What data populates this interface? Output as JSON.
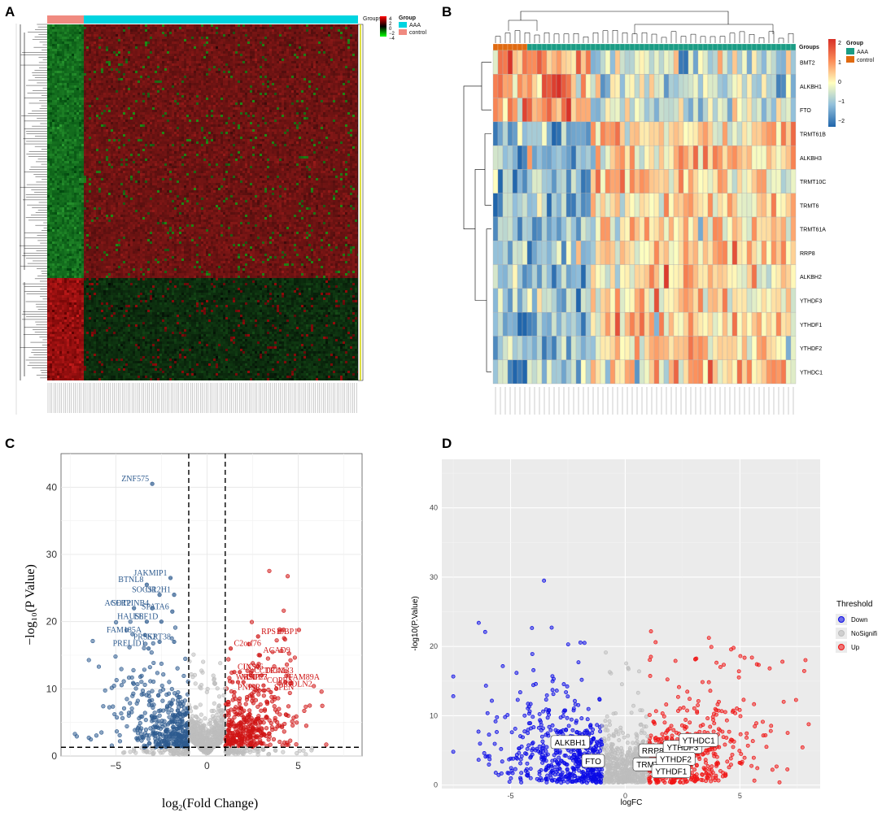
{
  "colors": {
    "aaa_cyan": "#00d4e0",
    "control_salmon": "#f08a80",
    "aaa_teal": "#1a9c84",
    "control_orange": "#e06a10",
    "down_blue_c": "#2e5b8f",
    "up_red_c": "#cf1414",
    "down_blue_d": "#0a0ae6",
    "up_red_d": "#f01414",
    "nosig_gray": "#bdbdbd"
  },
  "chart_data": [
    {
      "panel": "A",
      "type": "heatmap",
      "legend_title": "Group",
      "groups_label": "Groups",
      "groups": [
        "AAA",
        "control"
      ],
      "color_scale_ticks": [
        "4",
        "2",
        "0",
        "−2",
        "−4"
      ],
      "color_scale": {
        "low": "#00ff00",
        "mid": "#000000",
        "high": "#ff0000"
      },
      "blocks": [
        {
          "gene_cluster": "upper",
          "control": "green (low)",
          "AAA": "dark red (mid-high)"
        },
        {
          "gene_cluster": "lower",
          "control": "red (high)",
          "AAA": "dark green (mid-low)"
        }
      ]
    },
    {
      "panel": "B",
      "type": "heatmap",
      "legend_title": "Group",
      "groups_label": "Groups",
      "groups": [
        "AAA",
        "control"
      ],
      "color_scale_ticks": [
        "2",
        "1",
        "0",
        "−1",
        "−2"
      ],
      "genes": [
        "BMT2",
        "ALKBH1",
        "FTO",
        "TRMT61B",
        "ALKBH3",
        "TRMT10C",
        "TRMT6",
        "TRMT61A",
        "RRP8",
        "ALKBH2",
        "YTHDF3",
        "YTHDF1",
        "YTHDF2",
        "YTHDC1"
      ],
      "group_pattern": {
        "BMT2": {
          "control": "high",
          "AAA": "low"
        },
        "ALKBH1": {
          "control": "high",
          "AAA": "low"
        },
        "FTO": {
          "control": "high",
          "AAA": "low"
        },
        "TRMT61B": {
          "control": "low",
          "AAA": "high"
        },
        "ALKBH3": {
          "control": "low",
          "AAA": "high"
        },
        "TRMT10C": {
          "control": "low",
          "AAA": "high"
        },
        "TRMT6": {
          "control": "low",
          "AAA": "high"
        },
        "TRMT61A": {
          "control": "low",
          "AAA": "high"
        },
        "RRP8": {
          "control": "low",
          "AAA": "high"
        },
        "ALKBH2": {
          "control": "low",
          "AAA": "high"
        },
        "YTHDF3": {
          "control": "low",
          "AAA": "high"
        },
        "YTHDF1": {
          "control": "low",
          "AAA": "high"
        },
        "YTHDF2": {
          "control": "low",
          "AAA": "high"
        },
        "YTHDC1": {
          "control": "low",
          "AAA": "high"
        }
      }
    },
    {
      "panel": "C",
      "type": "scatter",
      "xlabel_base": "log",
      "xlabel_sub": "2",
      "xlabel_rest": "(Fold Change)",
      "ylabel": "−log₁₀(P Value)",
      "xlim": [
        -8,
        8.5
      ],
      "ylim": [
        0,
        45
      ],
      "xticks": [
        -5,
        0,
        5
      ],
      "yticks": [
        0,
        10,
        20,
        30,
        40
      ],
      "xtick_labels": [
        "−5",
        "0",
        "5"
      ],
      "ytick_labels": [
        "0",
        "10",
        "20",
        "30",
        "40"
      ],
      "fold_change_cutoffs": [
        -1,
        1
      ],
      "p_cutoff": 1.3,
      "labeled_points": [
        {
          "gene": "ZNF575",
          "x": -3.0,
          "y": 40.5,
          "dir": "down"
        },
        {
          "gene": "JAKMIP1",
          "x": -2.0,
          "y": 26.5,
          "dir": "down"
        },
        {
          "gene": "BTNL8",
          "x": -3.3,
          "y": 25.5,
          "dir": "down"
        },
        {
          "gene": "SOCS1",
          "x": -2.6,
          "y": 24.0,
          "dir": "down"
        },
        {
          "gene": "OR2H1",
          "x": -1.8,
          "y": 24.0,
          "dir": "down"
        },
        {
          "gene": "ACOT2",
          "x": -4.0,
          "y": 22.0,
          "dir": "down"
        },
        {
          "gene": "SERPINB4",
          "x": -3.0,
          "y": 22.0,
          "dir": "down"
        },
        {
          "gene": "SPATA6",
          "x": -1.9,
          "y": 21.5,
          "dir": "down"
        },
        {
          "gene": "HAUS8",
          "x": -3.3,
          "y": 20.0,
          "dir": "down"
        },
        {
          "gene": "EEF1D",
          "x": -2.5,
          "y": 20.0,
          "dir": "down"
        },
        {
          "gene": "FAM185A",
          "x": -3.4,
          "y": 18.0,
          "dir": "down"
        },
        {
          "gene": "PRSS2",
          "x": -2.6,
          "y": 17.0,
          "dir": "down"
        },
        {
          "gene": "KRT38",
          "x": -1.8,
          "y": 17.0,
          "dir": "down"
        },
        {
          "gene": "PRELID1",
          "x": -3.2,
          "y": 16.0,
          "dir": "down"
        },
        {
          "gene": "RPS19BP1",
          "x": 2.8,
          "y": 17.8,
          "dir": "up"
        },
        {
          "gene": "C2orf76",
          "x": 1.3,
          "y": 16.0,
          "dir": "up"
        },
        {
          "gene": "ACAD9",
          "x": 2.9,
          "y": 15.0,
          "dir": "up"
        },
        {
          "gene": "CLCN6",
          "x": 1.5,
          "y": 12.5,
          "dir": "up"
        },
        {
          "gene": "INS1",
          "x": 1.8,
          "y": 12.5,
          "dir": "up"
        },
        {
          "gene": "CCDC41",
          "x": 2.4,
          "y": 12.0,
          "dir": "up"
        },
        {
          "gene": "TRIM33",
          "x": 3.0,
          "y": 12.0,
          "dir": "up"
        },
        {
          "gene": "FAM89A",
          "x": 4.3,
          "y": 11.0,
          "dir": "up"
        },
        {
          "gene": "WRAP73",
          "x": 1.4,
          "y": 11.0,
          "dir": "up"
        },
        {
          "gene": "MSI",
          "x": 1.7,
          "y": 11.0,
          "dir": "up"
        },
        {
          "gene": "CUL7",
          "x": 2.0,
          "y": 11.0,
          "dir": "up"
        },
        {
          "gene": "COPRS",
          "x": 3.1,
          "y": 10.5,
          "dir": "up"
        },
        {
          "gene": "YGOLN2",
          "x": 3.8,
          "y": 10.0,
          "dir": "up"
        },
        {
          "gene": "PNISR",
          "x": 1.5,
          "y": 9.5,
          "dir": "up"
        },
        {
          "gene": "SPEN",
          "x": 3.5,
          "y": 9.5,
          "dir": "up"
        }
      ]
    },
    {
      "panel": "D",
      "type": "scatter",
      "xlabel": "logFC",
      "ylabel": "-log10(P.Value)",
      "xlim": [
        -8,
        8.5
      ],
      "ylim": [
        -0.5,
        47
      ],
      "xticks": [
        -5,
        0,
        5
      ],
      "yticks": [
        0,
        10,
        20,
        30,
        40
      ],
      "xtick_labels": [
        "-5",
        "0",
        "5"
      ],
      "ytick_labels": [
        "0",
        "10",
        "20",
        "30",
        "40"
      ],
      "legend_title": "Threshold",
      "legend_entries": [
        "Down",
        "NoSignifi",
        "Up"
      ],
      "labeled_points": [
        {
          "gene": "ALKBH1",
          "x": -2.4,
          "y": 6.2
        },
        {
          "gene": "FTO",
          "x": -1.4,
          "y": 3.5
        },
        {
          "gene": "RRP8",
          "x": 1.2,
          "y": 5.0
        },
        {
          "gene": "TRMT61A",
          "x": 1.3,
          "y": 3.0
        },
        {
          "gene": "YTHDF3",
          "x": 2.5,
          "y": 5.5
        },
        {
          "gene": "YTHDC1",
          "x": 3.2,
          "y": 6.5
        },
        {
          "gene": "YTHDF2",
          "x": 2.2,
          "y": 3.8
        },
        {
          "gene": "YTHDF1",
          "x": 2.0,
          "y": 2.0
        }
      ]
    }
  ],
  "panel_letters": {
    "a": "A",
    "b": "B",
    "c": "C",
    "d": "D"
  },
  "heatmap_a": {
    "groups_label": "Groups",
    "legend_title": "Group",
    "aaa_label": "AAA",
    "control_label": "control"
  },
  "heatmap_b": {
    "groups_label": "Groups",
    "legend_title": "Group",
    "aaa_label": "AAA",
    "control_label": "control"
  }
}
